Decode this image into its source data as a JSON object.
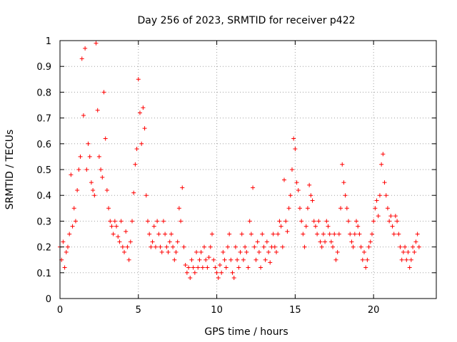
{
  "chart_data": {
    "type": "scatter",
    "title": "Day 256 of 2023, SRMTID for receiver p422",
    "xlabel": "GPS time / hours",
    "ylabel": "SRMTID / TECUs",
    "xlim": [
      0,
      24
    ],
    "ylim": [
      0,
      1
    ],
    "xticks": [
      0,
      5,
      10,
      15,
      20
    ],
    "xtick_labels": [
      "0",
      "5",
      "10",
      "15",
      "20"
    ],
    "yticks": [
      0,
      0.1,
      0.2,
      0.3,
      0.4,
      0.5,
      0.6,
      0.7,
      0.8,
      0.9,
      1
    ],
    "ytick_labels": [
      "0",
      "0.1",
      "0.2",
      "0.3",
      "0.4",
      "0.5",
      "0.6",
      "0.7",
      "0.8",
      "0.9",
      "1"
    ],
    "grid": true,
    "marker": "+",
    "series": [
      {
        "name": "SRMTID",
        "color": "#ff0000",
        "x": [
          0.0,
          0.1,
          0.2,
          0.3,
          0.4,
          0.5,
          0.6,
          0.7,
          0.8,
          0.9,
          1.0,
          1.1,
          1.2,
          1.3,
          1.4,
          1.5,
          1.6,
          1.7,
          1.8,
          1.9,
          2.0,
          2.1,
          2.2,
          2.3,
          2.4,
          2.5,
          2.6,
          2.7,
          2.8,
          2.9,
          3.0,
          3.1,
          3.2,
          3.3,
          3.4,
          3.5,
          3.6,
          3.7,
          3.8,
          3.9,
          4.0,
          4.1,
          4.2,
          4.3,
          4.4,
          4.5,
          4.6,
          4.7,
          4.8,
          4.9,
          5.0,
          5.1,
          5.2,
          5.3,
          5.4,
          5.5,
          5.6,
          5.7,
          5.8,
          5.9,
          6.0,
          6.1,
          6.2,
          6.3,
          6.4,
          6.5,
          6.6,
          6.7,
          6.8,
          6.9,
          7.0,
          7.1,
          7.2,
          7.3,
          7.4,
          7.5,
          7.6,
          7.7,
          7.8,
          7.9,
          8.0,
          8.1,
          8.2,
          8.3,
          8.4,
          8.5,
          8.6,
          8.7,
          8.8,
          8.9,
          9.0,
          9.1,
          9.2,
          9.3,
          9.4,
          9.5,
          9.6,
          9.7,
          9.8,
          9.9,
          10.0,
          10.1,
          10.2,
          10.3,
          10.4,
          10.5,
          10.6,
          10.7,
          10.8,
          10.9,
          11.0,
          11.1,
          11.2,
          11.3,
          11.4,
          11.5,
          11.6,
          11.7,
          11.8,
          11.9,
          12.0,
          12.1,
          12.2,
          12.3,
          12.4,
          12.5,
          12.6,
          12.7,
          12.8,
          12.9,
          13.0,
          13.1,
          13.2,
          13.3,
          13.4,
          13.5,
          13.6,
          13.7,
          13.8,
          13.9,
          14.0,
          14.1,
          14.2,
          14.3,
          14.4,
          14.5,
          14.6,
          14.7,
          14.8,
          14.9,
          15.0,
          15.1,
          15.2,
          15.3,
          15.4,
          15.5,
          15.6,
          15.7,
          15.8,
          15.9,
          16.0,
          16.1,
          16.2,
          16.3,
          16.4,
          16.5,
          16.6,
          16.7,
          16.8,
          16.9,
          17.0,
          17.1,
          17.2,
          17.3,
          17.4,
          17.5,
          17.6,
          17.7,
          17.8,
          17.9,
          18.0,
          18.1,
          18.2,
          18.3,
          18.4,
          18.5,
          18.6,
          18.7,
          18.8,
          18.9,
          19.0,
          19.1,
          19.2,
          19.3,
          19.4,
          19.5,
          19.6,
          19.7,
          19.8,
          19.9,
          20.0,
          20.1,
          20.2,
          20.3,
          20.4,
          20.5,
          20.6,
          20.7,
          20.8,
          20.9,
          21.0,
          21.1,
          21.2,
          21.3,
          21.4,
          21.5,
          21.6,
          21.7,
          21.8,
          21.9,
          22.0,
          22.1,
          22.2,
          22.3,
          22.4,
          22.5,
          22.6,
          22.7,
          22.8,
          22.9
        ],
        "y": [
          0.2,
          0.15,
          0.22,
          0.12,
          0.18,
          0.2,
          0.25,
          0.48,
          0.28,
          0.35,
          0.3,
          0.42,
          0.5,
          0.55,
          0.93,
          0.71,
          0.97,
          0.5,
          0.6,
          0.55,
          0.45,
          0.42,
          0.4,
          0.99,
          0.73,
          0.55,
          0.5,
          0.47,
          0.8,
          0.62,
          0.42,
          0.35,
          0.3,
          0.28,
          0.25,
          0.3,
          0.28,
          0.24,
          0.22,
          0.3,
          0.2,
          0.18,
          0.26,
          0.2,
          0.15,
          0.22,
          0.3,
          0.41,
          0.52,
          0.58,
          0.85,
          0.72,
          0.6,
          0.74,
          0.66,
          0.4,
          0.3,
          0.25,
          0.2,
          0.22,
          0.28,
          0.2,
          0.3,
          0.25,
          0.2,
          0.18,
          0.3,
          0.25,
          0.2,
          0.18,
          0.22,
          0.25,
          0.2,
          0.15,
          0.18,
          0.22,
          0.35,
          0.3,
          0.43,
          0.2,
          0.13,
          0.1,
          0.12,
          0.08,
          0.15,
          0.12,
          0.1,
          0.18,
          0.12,
          0.15,
          0.18,
          0.12,
          0.2,
          0.15,
          0.12,
          0.16,
          0.2,
          0.25,
          0.15,
          0.12,
          0.1,
          0.08,
          0.13,
          0.1,
          0.18,
          0.15,
          0.12,
          0.2,
          0.25,
          0.15,
          0.1,
          0.08,
          0.2,
          0.15,
          0.12,
          0.18,
          0.25,
          0.15,
          0.2,
          0.18,
          0.12,
          0.3,
          0.25,
          0.43,
          0.2,
          0.15,
          0.22,
          0.18,
          0.12,
          0.25,
          0.2,
          0.15,
          0.22,
          0.18,
          0.14,
          0.2,
          0.25,
          0.2,
          0.18,
          0.25,
          0.3,
          0.28,
          0.2,
          0.46,
          0.3,
          0.26,
          0.35,
          0.4,
          0.5,
          0.62,
          0.58,
          0.45,
          0.42,
          0.35,
          0.3,
          0.25,
          0.2,
          0.28,
          0.35,
          0.44,
          0.4,
          0.38,
          0.3,
          0.28,
          0.25,
          0.3,
          0.22,
          0.2,
          0.25,
          0.22,
          0.3,
          0.28,
          0.25,
          0.22,
          0.2,
          0.25,
          0.15,
          0.18,
          0.25,
          0.35,
          0.52,
          0.45,
          0.4,
          0.35,
          0.3,
          0.25,
          0.22,
          0.2,
          0.25,
          0.3,
          0.28,
          0.25,
          0.2,
          0.15,
          0.18,
          0.12,
          0.15,
          0.2,
          0.22,
          0.25,
          0.3,
          0.35,
          0.38,
          0.32,
          0.4,
          0.52,
          0.56,
          0.45,
          0.4,
          0.35,
          0.3,
          0.32,
          0.28,
          0.25,
          0.32,
          0.3,
          0.25,
          0.2,
          0.15,
          0.18,
          0.2,
          0.15,
          0.18,
          0.12,
          0.15,
          0.2,
          0.18,
          0.22,
          0.25,
          0.2
        ]
      }
    ]
  }
}
